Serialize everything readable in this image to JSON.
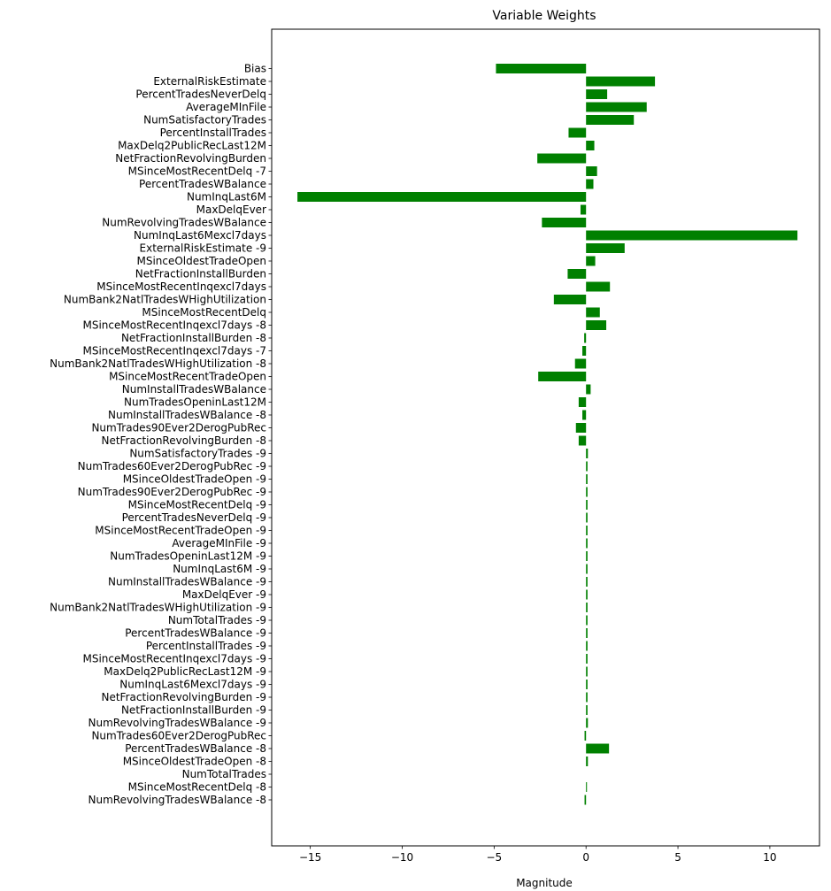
{
  "chart_data": {
    "type": "bar",
    "orientation": "horizontal",
    "title": "Variable Weights",
    "xlabel": "Magnitude",
    "ylabel": "",
    "xlim": [
      -17.1,
      12.7
    ],
    "xticks": [
      -15,
      -10,
      -5,
      0,
      5,
      10
    ],
    "xtick_labels": [
      "−15",
      "−10",
      "−5",
      "0",
      "5",
      "10"
    ],
    "grid": false,
    "bar_color": "#008000",
    "categories": [
      "Bias",
      "ExternalRiskEstimate",
      "PercentTradesNeverDelq",
      "AverageMInFile",
      "NumSatisfactoryTrades",
      "PercentInstallTrades",
      "MaxDelq2PublicRecLast12M",
      "NetFractionRevolvingBurden",
      "MSinceMostRecentDelq -7",
      "PercentTradesWBalance",
      "NumInqLast6M",
      "MaxDelqEver",
      "NumRevolvingTradesWBalance",
      "NumInqLast6Mexcl7days",
      "ExternalRiskEstimate -9",
      "MSinceOldestTradeOpen",
      "NetFractionInstallBurden",
      "MSinceMostRecentInqexcl7days",
      "NumBank2NatlTradesWHighUtilization",
      "MSinceMostRecentDelq",
      "MSinceMostRecentInqexcl7days -8",
      "NetFractionInstallBurden -8",
      "MSinceMostRecentInqexcl7days -7",
      "NumBank2NatlTradesWHighUtilization -8",
      "MSinceMostRecentTradeOpen",
      "NumInstallTradesWBalance",
      "NumTradesOpeninLast12M",
      "NumInstallTradesWBalance -8",
      "NumTrades90Ever2DerogPubRec",
      "NetFractionRevolvingBurden -8",
      "NumSatisfactoryTrades -9",
      "NumTrades60Ever2DerogPubRec -9",
      "MSinceOldestTradeOpen -9",
      "NumTrades90Ever2DerogPubRec -9",
      "MSinceMostRecentDelq -9",
      "PercentTradesNeverDelq -9",
      "MSinceMostRecentTradeOpen -9",
      "AverageMInFile -9",
      "NumTradesOpeninLast12M -9",
      "NumInqLast6M -9",
      "NumInstallTradesWBalance -9",
      "MaxDelqEver -9",
      "NumBank2NatlTradesWHighUtilization -9",
      "NumTotalTrades -9",
      "PercentTradesWBalance -9",
      "PercentInstallTrades -9",
      "MSinceMostRecentInqexcl7days -9",
      "MaxDelq2PublicRecLast12M -9",
      "NumInqLast6Mexcl7days -9",
      "NetFractionRevolvingBurden -9",
      "NetFractionInstallBurden -9",
      "NumRevolvingTradesWBalance -9",
      "NumTrades60Ever2DerogPubRec",
      "PercentTradesWBalance -8",
      "MSinceOldestTradeOpen -8",
      "NumTotalTrades",
      "MSinceMostRecentDelq -8",
      "NumRevolvingTradesWBalance -8"
    ],
    "values": [
      -4.9,
      3.75,
      1.15,
      3.3,
      2.6,
      -0.95,
      0.45,
      -2.65,
      0.6,
      0.4,
      -15.7,
      -0.3,
      -2.4,
      11.5,
      2.1,
      0.5,
      -1.0,
      1.3,
      -1.75,
      0.75,
      1.1,
      -0.1,
      -0.2,
      -0.6,
      -2.6,
      0.25,
      -0.4,
      -0.2,
      -0.55,
      -0.4,
      0.1,
      0.08,
      0.08,
      0.08,
      0.08,
      0.08,
      0.08,
      0.08,
      0.08,
      0.08,
      0.08,
      0.08,
      0.08,
      0.08,
      0.08,
      0.08,
      0.08,
      0.08,
      0.08,
      0.08,
      0.08,
      0.1,
      -0.08,
      1.25,
      0.1,
      0.0,
      0.05,
      -0.08
    ]
  }
}
